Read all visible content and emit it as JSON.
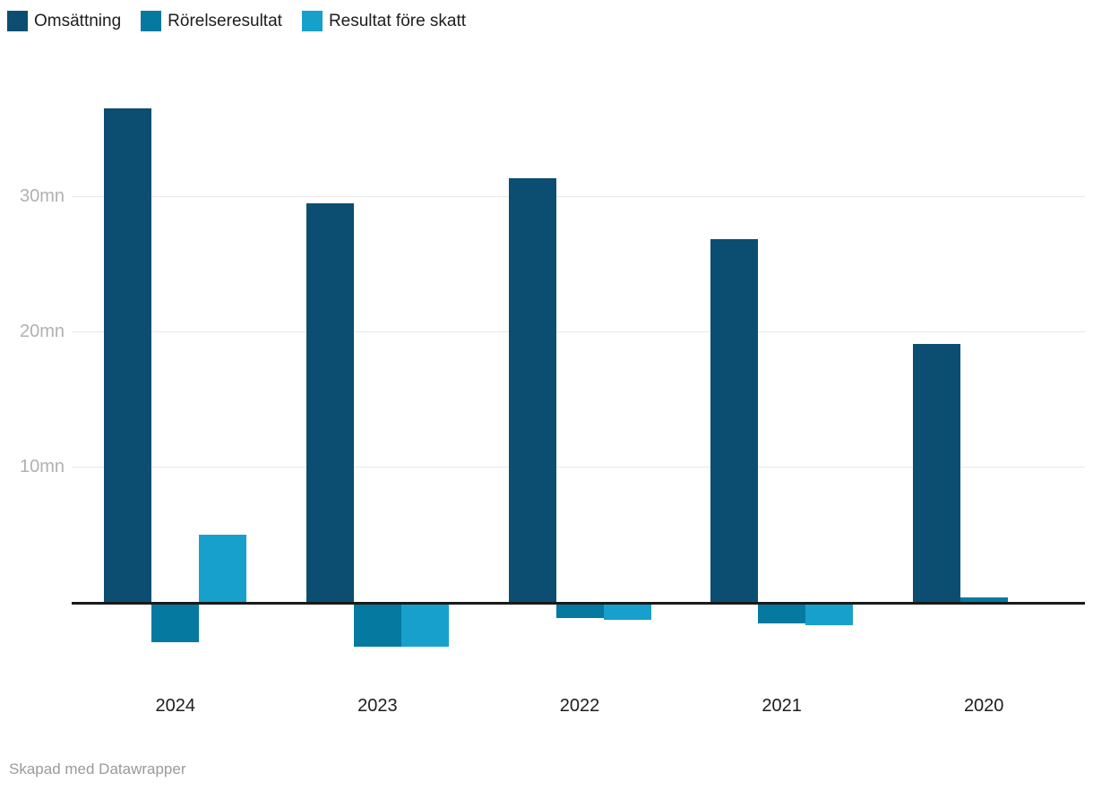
{
  "footer": {
    "credit": "Skapad med Datawrapper"
  },
  "chart_data": {
    "type": "bar",
    "orientation": "vertical-grouped",
    "categories": [
      "2024",
      "2023",
      "2022",
      "2021",
      "2020"
    ],
    "series": [
      {
        "name": "Omsättning",
        "color": "#0b4e71",
        "values": [
          36.5,
          29.5,
          31.3,
          26.8,
          19.1
        ]
      },
      {
        "name": "Rörelseresultat",
        "color": "#0679a1",
        "values": [
          -2.8,
          -3.1,
          -1.0,
          -1.4,
          0.3
        ]
      },
      {
        "name": "Resultat före skatt",
        "color": "#18a0cd",
        "values": [
          5.0,
          -3.1,
          -1.1,
          -1.5,
          0
        ]
      }
    ],
    "xlabel": "",
    "ylabel": "",
    "unit": "mn",
    "y_ticks": [
      {
        "value": 10,
        "label": "10mn"
      },
      {
        "value": 20,
        "label": "20mn"
      },
      {
        "value": 30,
        "label": "30mn"
      }
    ],
    "ylim": [
      -5,
      38
    ],
    "grid": "horizontal",
    "baseline": 0,
    "legend_position": "top-left"
  }
}
